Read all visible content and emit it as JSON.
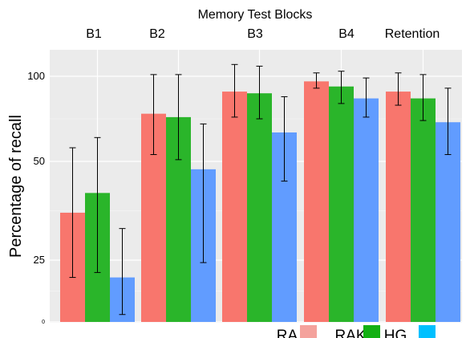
{
  "chart_data": {
    "type": "bar",
    "title": "Memory Test Blocks",
    "ylabel": "Percentage of recall",
    "xlabel": "",
    "ylim": [
      0,
      100
    ],
    "yticks": [
      {
        "label": "0",
        "value": 0
      },
      {
        "label": "25",
        "value": 25
      },
      {
        "label": "50",
        "value": 50
      },
      {
        "label": "100",
        "value": 100
      }
    ],
    "grid": true,
    "legend_position": "bottom-right",
    "categories": [
      "B1",
      "B2",
      "B3",
      "B4",
      "Retention"
    ],
    "series": [
      {
        "name": "RA",
        "color": "#f8766d",
        "values": [
          37,
          78,
          91,
          97,
          91
        ],
        "err_low": [
          18,
          54,
          76,
          93,
          83
        ],
        "err_high": [
          58,
          101,
          107,
          102,
          102
        ]
      },
      {
        "name": "RAK",
        "color": "#2ab52a",
        "values": [
          42,
          76,
          90,
          94,
          87
        ],
        "err_low": [
          20,
          51,
          75,
          84,
          74
        ],
        "err_high": [
          64,
          101,
          106,
          103,
          101
        ]
      },
      {
        "name": "HG",
        "color": "#619cff",
        "values": [
          18,
          48,
          67,
          87,
          73
        ],
        "err_low": [
          3,
          24,
          45,
          76,
          54
        ],
        "err_high": [
          33,
          72,
          88,
          99,
          93
        ]
      }
    ],
    "legend_swatches": [
      {
        "color": "#f4a29c"
      },
      {
        "color": "#13b013"
      },
      {
        "color": "#00c0ff"
      }
    ]
  }
}
